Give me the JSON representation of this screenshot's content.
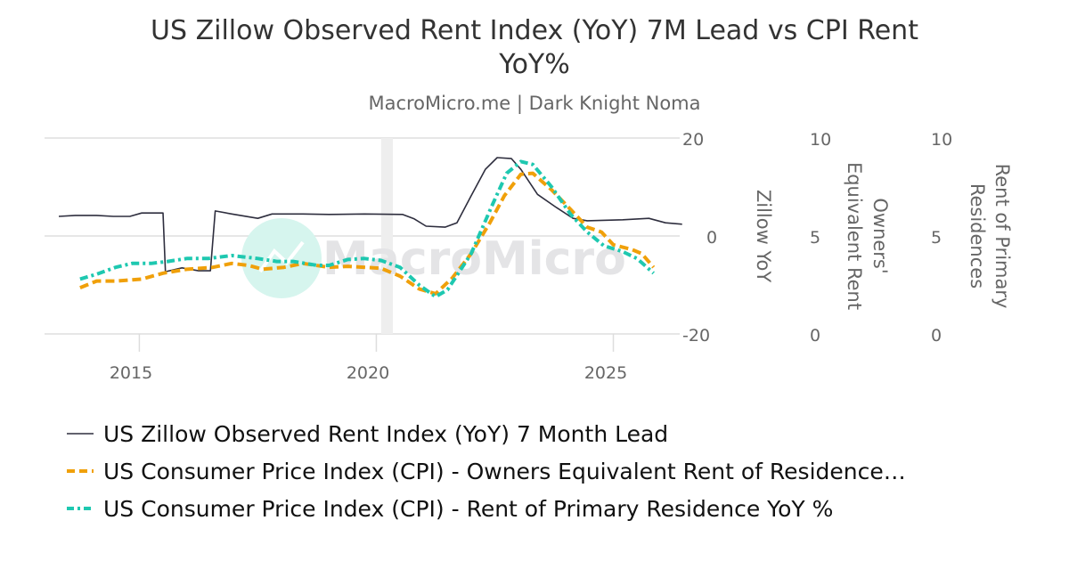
{
  "chart_data": {
    "type": "line",
    "title": "US Zillow Observed Rent Index (YoY) 7M Lead vs CPI Rent YoY%",
    "title_lines": [
      "US Zillow Observed Rent Index (YoY) 7M Lead vs CPI Rent",
      "YoY%"
    ],
    "subtitle": "MacroMicro.me | Dark Knight Noma",
    "watermark": "MacroMicro",
    "grid": true,
    "legend_placement": "bottom",
    "x_axis": {
      "type": "date",
      "range": [
        2013.0,
        2026.4
      ],
      "ticks": [
        "2015",
        "2020",
        "2025"
      ],
      "tick_values": [
        2015,
        2020,
        2025
      ]
    },
    "shaded_band": [
      2020.1,
      2020.35
    ],
    "y_axes": [
      {
        "id": "zillow",
        "label": "Zillow YoY",
        "range": [
          -20,
          20
        ],
        "ticks": [
          "-20",
          "0",
          "20"
        ]
      },
      {
        "id": "oer",
        "label_lines": [
          "Owners'",
          "Equivalent Rent"
        ],
        "range": [
          0,
          10
        ],
        "ticks": [
          "0",
          "5",
          "10"
        ]
      },
      {
        "id": "rent",
        "label_lines": [
          "Rent of Primary",
          "Residences"
        ],
        "range": [
          0,
          10
        ],
        "ticks": [
          "0",
          "5",
          "10"
        ]
      }
    ],
    "series": [
      {
        "name": "US Zillow Observed Rent Index (YoY) 7 Month Lead",
        "axis": "zillow",
        "color": "#2e2e3e",
        "style": "solid",
        "x": [
          2013.3,
          2013.65,
          2014.1,
          2014.45,
          2014.8,
          2015.05,
          2015.5,
          2015.55,
          2015.9,
          2016.25,
          2016.5,
          2016.6,
          2016.95,
          2017.5,
          2017.8,
          2018.45,
          2019.0,
          2019.75,
          2020.55,
          2020.8,
          2021.05,
          2021.45,
          2021.7,
          2022.0,
          2022.3,
          2022.55,
          2022.85,
          2023.05,
          2023.4,
          2023.8,
          2024.15,
          2024.45,
          2025.2,
          2025.75,
          2026.1,
          2026.45
        ],
        "y": [
          4.0,
          4.2,
          4.2,
          4.0,
          4.0,
          4.7,
          4.7,
          -7.3,
          -6.5,
          -7.1,
          -7.1,
          5.1,
          4.5,
          3.6,
          4.5,
          4.5,
          4.4,
          4.5,
          4.4,
          3.5,
          2.0,
          1.8,
          2.7,
          8.2,
          13.6,
          16.0,
          15.8,
          13.6,
          8.5,
          5.8,
          3.6,
          3.1,
          3.3,
          3.6,
          2.7,
          2.4
        ]
      },
      {
        "name": "US Consumer Price Index (CPI) - Owners Equivalent Rent of Residence…",
        "axis": "oer",
        "color": "#f0a00a",
        "style": "dashed",
        "x": [
          2013.75,
          2014.1,
          2014.5,
          2015.05,
          2015.5,
          2016.0,
          2016.55,
          2016.95,
          2017.3,
          2017.6,
          2018.05,
          2018.45,
          2019.0,
          2019.4,
          2020.1,
          2020.5,
          2020.9,
          2021.25,
          2021.6,
          2022.0,
          2022.4,
          2022.7,
          2023.05,
          2023.3,
          2023.7,
          2024.1,
          2024.45,
          2024.75,
          2025.0,
          2025.4,
          2025.6,
          2025.85
        ],
        "y": [
          2.36,
          2.7,
          2.7,
          2.8,
          3.1,
          3.3,
          3.4,
          3.6,
          3.5,
          3.3,
          3.4,
          3.6,
          3.4,
          3.45,
          3.35,
          2.95,
          2.3,
          2.05,
          2.85,
          4.1,
          5.7,
          7.05,
          8.15,
          8.2,
          7.35,
          6.35,
          5.45,
          5.2,
          4.55,
          4.3,
          4.1,
          3.4
        ]
      },
      {
        "name": "US Consumer Price Index (CPI) - Rent of Primary Residence YoY %",
        "axis": "rent",
        "color": "#1ec8b0",
        "style": "dashdot",
        "x": [
          2013.75,
          2014.1,
          2014.5,
          2014.85,
          2015.25,
          2015.6,
          2016.0,
          2016.45,
          2016.95,
          2017.5,
          2017.9,
          2018.25,
          2018.75,
          2019.0,
          2019.4,
          2019.75,
          2020.1,
          2020.5,
          2020.9,
          2021.25,
          2021.5,
          2022.0,
          2022.45,
          2022.75,
          2023.05,
          2023.3,
          2023.7,
          2024.1,
          2024.45,
          2024.8,
          2025.2,
          2025.5,
          2025.85
        ],
        "y": [
          2.8,
          3.05,
          3.4,
          3.6,
          3.6,
          3.7,
          3.85,
          3.85,
          4.0,
          3.85,
          3.7,
          3.7,
          3.5,
          3.5,
          3.8,
          3.85,
          3.75,
          3.4,
          2.5,
          1.9,
          2.25,
          4.1,
          6.6,
          8.2,
          8.8,
          8.65,
          7.5,
          6.1,
          5.2,
          4.5,
          4.2,
          3.85,
          3.1
        ]
      }
    ]
  }
}
